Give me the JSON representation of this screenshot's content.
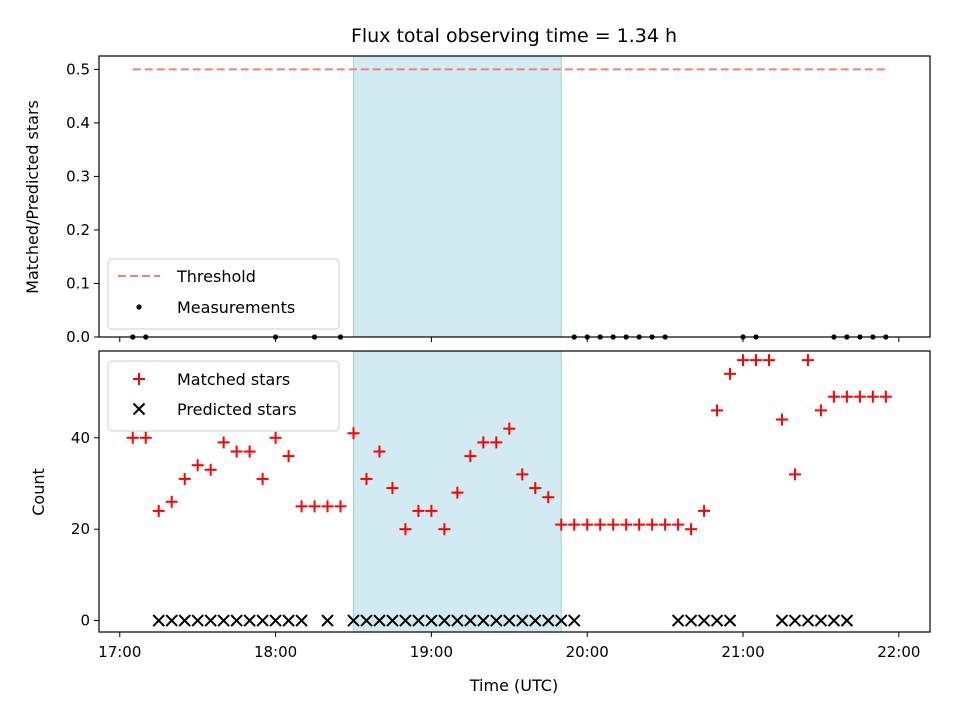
{
  "title": "Flux total observing time = 1.34 h",
  "colors": {
    "matched": "#ff0000",
    "predicted": "#000000",
    "threshold": "#f08080",
    "measurement": "#000000",
    "shade": "#add8e6"
  },
  "chart_data": [
    {
      "type": "scatter",
      "panel": "top",
      "ylabel": "Matched/Predicted stars",
      "ylim": [
        0,
        0.525
      ],
      "xlim": [
        "16:52",
        "22:12"
      ],
      "yticks": [
        "0.0",
        "0.1",
        "0.2",
        "0.3",
        "0.4",
        "0.5"
      ],
      "ytick_values": [
        0,
        0.1,
        0.2,
        0.3,
        0.4,
        0.5
      ],
      "xtick_values": [
        "17:00",
        "18:00",
        "19:00",
        "20:00",
        "21:00",
        "22:00"
      ],
      "shaded_interval": [
        "18:30",
        "19:50"
      ],
      "legend": {
        "location": "lower-left",
        "entries": [
          "Threshold",
          "Measurements"
        ]
      },
      "series": [
        {
          "name": "Threshold",
          "kind": "dashed-line",
          "x": [
            "17:05",
            "21:55"
          ],
          "y": [
            0.5,
            0.5
          ]
        },
        {
          "name": "Measurements",
          "kind": "dots",
          "x": [
            "17:05",
            "17:10",
            "18:00",
            "18:15",
            "18:25",
            "19:55",
            "20:00",
            "20:05",
            "20:10",
            "20:15",
            "20:20",
            "20:25",
            "20:30",
            "21:00",
            "21:05",
            "21:35",
            "21:40",
            "21:45",
            "21:50",
            "21:55"
          ],
          "y": [
            0,
            0,
            0,
            0,
            0,
            0,
            0,
            0,
            0,
            0,
            0,
            0,
            0,
            0,
            0,
            0,
            0,
            0,
            0,
            0
          ]
        }
      ]
    },
    {
      "type": "scatter",
      "panel": "bottom",
      "xlabel": "Time (UTC)",
      "ylabel": "Count",
      "ylim": [
        -2.5,
        59
      ],
      "xlim": [
        "16:52",
        "22:12"
      ],
      "yticks": [
        "0",
        "20",
        "40"
      ],
      "ytick_values": [
        0,
        20,
        40
      ],
      "xticks": [
        "17:00",
        "18:00",
        "19:00",
        "20:00",
        "21:00",
        "22:00"
      ],
      "shaded_interval": [
        "18:30",
        "19:50"
      ],
      "legend": {
        "location": "upper-left",
        "entries": [
          "Matched stars",
          "Predicted stars"
        ]
      },
      "series": [
        {
          "name": "Matched stars",
          "marker": "plus",
          "x": [
            "17:05",
            "17:10",
            "17:15",
            "17:20",
            "17:25",
            "17:30",
            "17:35",
            "17:40",
            "17:45",
            "17:50",
            "17:55",
            "18:00",
            "18:05",
            "18:10",
            "18:15",
            "18:20",
            "18:25",
            "18:30",
            "18:35",
            "18:40",
            "18:45",
            "18:50",
            "18:55",
            "19:00",
            "19:05",
            "19:10",
            "19:15",
            "19:20",
            "19:25",
            "19:30",
            "19:35",
            "19:40",
            "19:45",
            "19:50",
            "19:55",
            "20:00",
            "20:05",
            "20:10",
            "20:15",
            "20:20",
            "20:25",
            "20:30",
            "20:35",
            "20:40",
            "20:45",
            "20:50",
            "20:55",
            "21:00",
            "21:05",
            "21:10",
            "21:15",
            "21:20",
            "21:25",
            "21:30",
            "21:35",
            "21:40",
            "21:45",
            "21:50",
            "21:55"
          ],
          "y": [
            40,
            40,
            24,
            26,
            31,
            34,
            33,
            39,
            37,
            37,
            31,
            40,
            36,
            25,
            25,
            25,
            25,
            41,
            31,
            37,
            29,
            20,
            24,
            24,
            20,
            28,
            36,
            39,
            39,
            42,
            32,
            29,
            27,
            21,
            21,
            21,
            21,
            21,
            21,
            21,
            21,
            21,
            21,
            20,
            24,
            46,
            54,
            57,
            57,
            57,
            44,
            32,
            57,
            46,
            49,
            49,
            49,
            49,
            49
          ]
        },
        {
          "name": "Predicted stars",
          "marker": "x",
          "x": [
            "17:15",
            "17:20",
            "17:25",
            "17:30",
            "17:35",
            "17:40",
            "17:45",
            "17:50",
            "17:55",
            "18:00",
            "18:05",
            "18:10",
            "18:20",
            "18:30",
            "18:35",
            "18:40",
            "18:45",
            "18:50",
            "18:55",
            "19:00",
            "19:05",
            "19:10",
            "19:15",
            "19:20",
            "19:25",
            "19:30",
            "19:35",
            "19:40",
            "19:45",
            "19:50",
            "19:55",
            "20:35",
            "20:40",
            "20:45",
            "20:50",
            "20:55",
            "21:15",
            "21:20",
            "21:25",
            "21:30",
            "21:35",
            "21:40"
          ],
          "y": [
            0,
            0,
            0,
            0,
            0,
            0,
            0,
            0,
            0,
            0,
            0,
            0,
            0,
            0,
            0,
            0,
            0,
            0,
            0,
            0,
            0,
            0,
            0,
            0,
            0,
            0,
            0,
            0,
            0,
            0,
            0,
            0,
            0,
            0,
            0,
            0,
            0,
            0,
            0,
            0,
            0,
            0
          ]
        }
      ]
    }
  ]
}
